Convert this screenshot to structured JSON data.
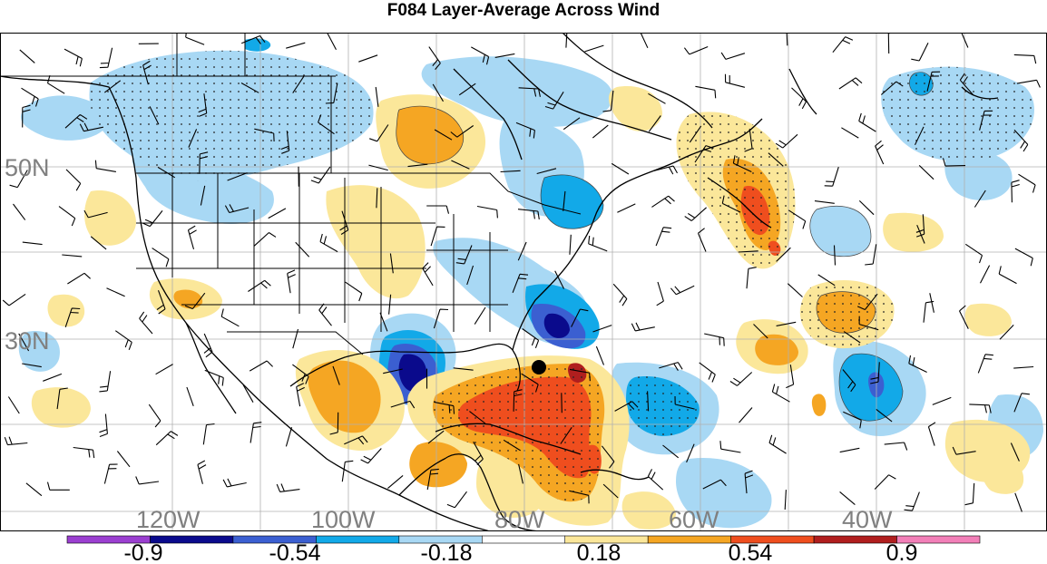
{
  "title": "F084 Layer-Average Across Wind",
  "map": {
    "lat_labels": [
      "50N",
      "30N"
    ],
    "lon_labels": [
      "120W",
      "100W",
      "80W",
      "60W",
      "40W"
    ],
    "storm_marker": "hurricane-center-dot"
  },
  "colorbar": {
    "colors": [
      "#9b3fd0",
      "#0a0a8c",
      "#3b5fd1",
      "#12a9e8",
      "#a8d8f4",
      "#ffffff",
      "#fbe79a",
      "#f5a623",
      "#ef4e1e",
      "#b01e1e",
      "#f27fb8"
    ],
    "tick_labels": [
      "-0.9",
      "-0.54",
      "-0.18",
      "0.18",
      "0.54",
      "0.9"
    ]
  }
}
